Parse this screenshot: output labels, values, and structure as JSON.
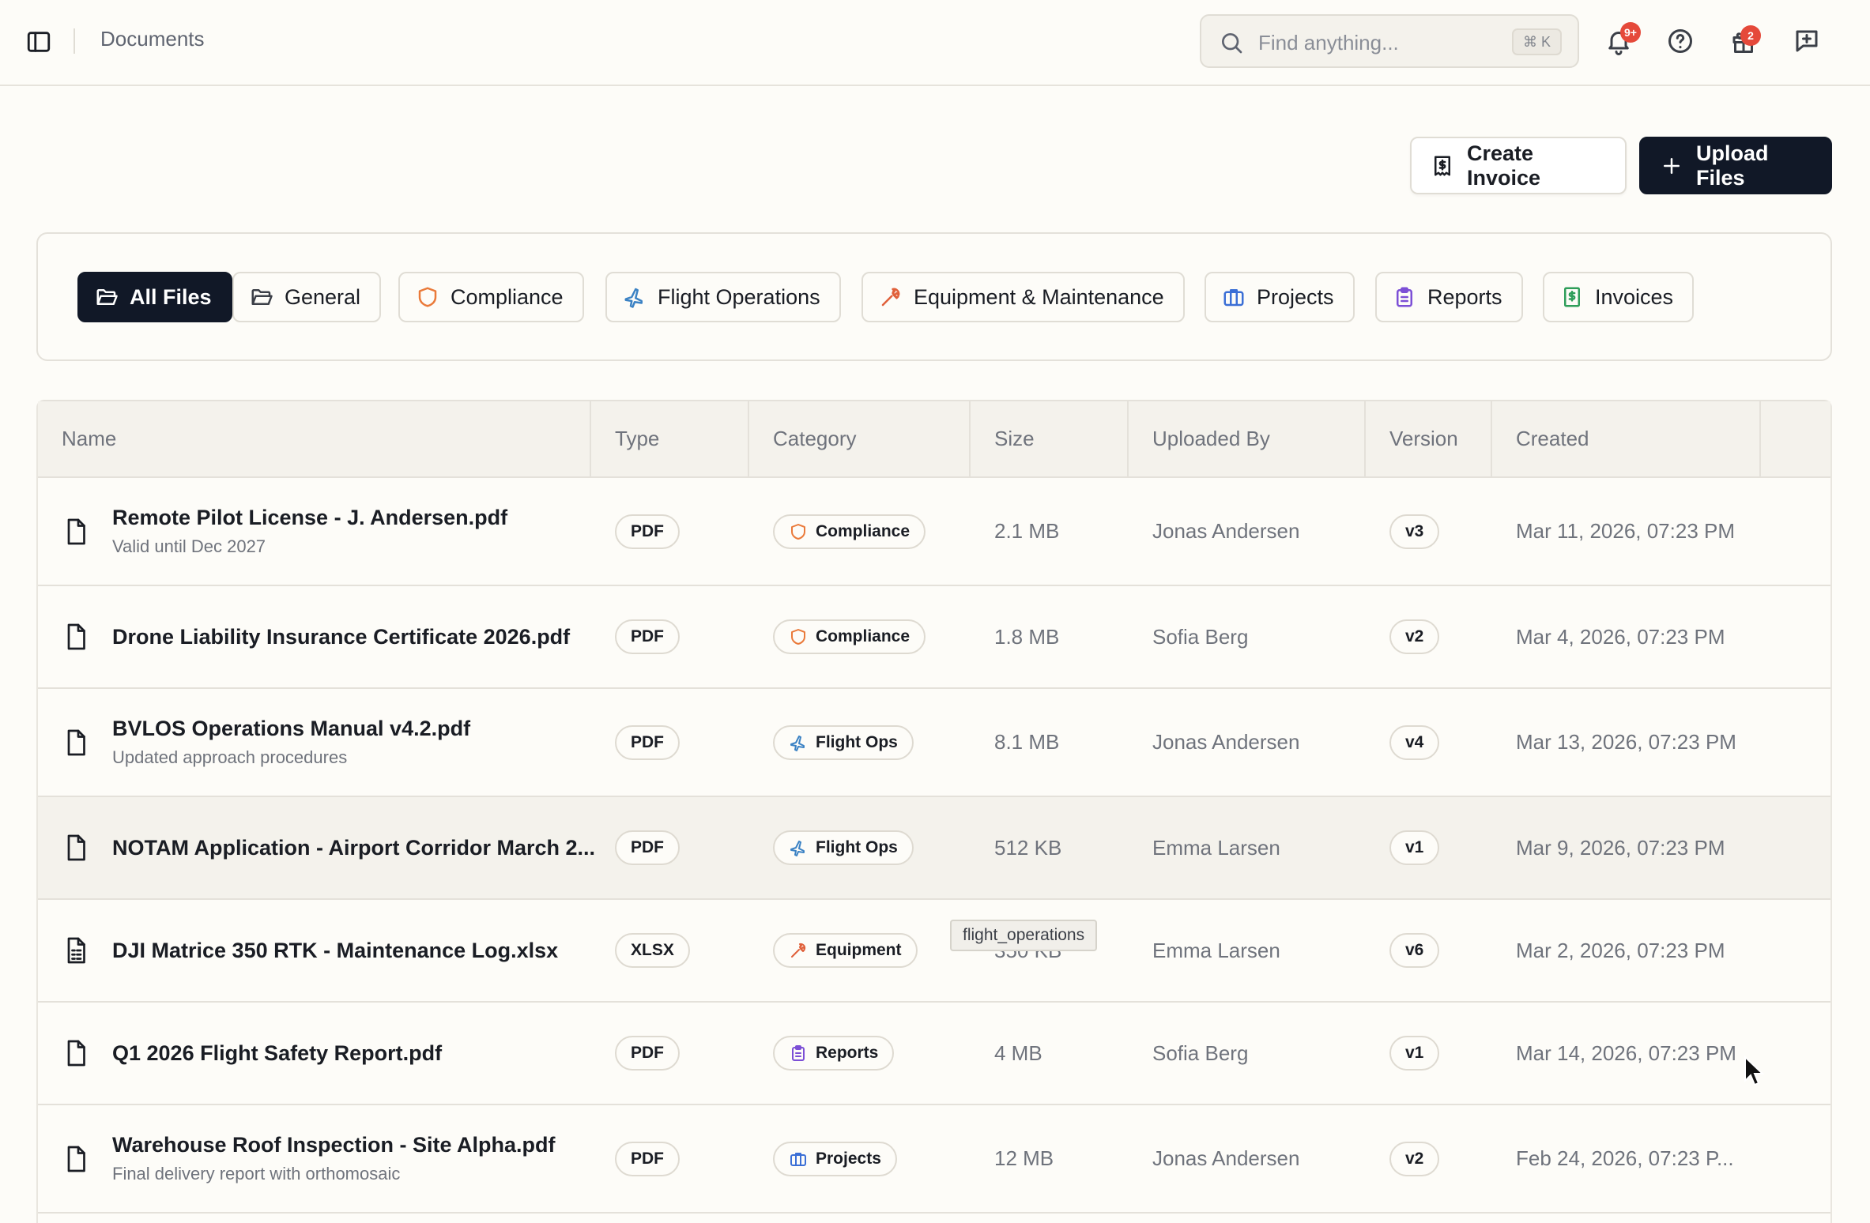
{
  "header": {
    "breadcrumb": "Documents",
    "search_placeholder": "Find anything...",
    "search_shortcut": "⌘ K",
    "notifications_badge": "9+",
    "gifts_badge": "2"
  },
  "actions": {
    "create_invoice": "Create Invoice",
    "upload_files": "Upload Files"
  },
  "tabs": [
    {
      "label": "All Files",
      "icon": "folder-open-icon",
      "active": true
    },
    {
      "label": "General",
      "icon": "folder-icon",
      "active": false
    },
    {
      "label": "Compliance",
      "icon": "shield-icon",
      "active": false
    },
    {
      "label": "Flight Operations",
      "icon": "plane-icon",
      "active": false
    },
    {
      "label": "Equipment & Maintenance",
      "icon": "wrench-icon",
      "active": false
    },
    {
      "label": "Projects",
      "icon": "briefcase-icon",
      "active": false
    },
    {
      "label": "Reports",
      "icon": "clipboard-icon",
      "active": false
    },
    {
      "label": "Invoices",
      "icon": "receipt-icon",
      "active": false
    }
  ],
  "table": {
    "columns": [
      "Name",
      "Type",
      "Category",
      "Size",
      "Uploaded By",
      "Version",
      "Created"
    ],
    "rows": [
      {
        "name": "Remote Pilot License - J. Andersen.pdf",
        "desc": "Valid until Dec 2027",
        "type": "PDF",
        "category": "Compliance",
        "category_icon": "shield-icon",
        "size": "2.1 MB",
        "uploaded_by": "Jonas Andersen",
        "version": "v3",
        "created": "Mar 11, 2026, 07:23 PM"
      },
      {
        "name": "Drone Liability Insurance Certificate 2026.pdf",
        "desc": "",
        "type": "PDF",
        "category": "Compliance",
        "category_icon": "shield-icon",
        "size": "1.8 MB",
        "uploaded_by": "Sofia Berg",
        "version": "v2",
        "created": "Mar 4, 2026, 07:23 PM"
      },
      {
        "name": "BVLOS Operations Manual v4.2.pdf",
        "desc": "Updated approach procedures",
        "type": "PDF",
        "category": "Flight Ops",
        "category_icon": "plane-icon",
        "size": "8.1 MB",
        "uploaded_by": "Jonas Andersen",
        "version": "v4",
        "created": "Mar 13, 2026, 07:23 PM"
      },
      {
        "name": "NOTAM Application - Airport Corridor March 2...",
        "desc": "",
        "type": "PDF",
        "category": "Flight Ops",
        "category_icon": "plane-icon",
        "size": "512 KB",
        "uploaded_by": "Emma Larsen",
        "version": "v1",
        "created": "Mar 9, 2026, 07:23 PM"
      },
      {
        "name": "DJI Matrice 350 RTK - Maintenance Log.xlsx",
        "desc": "",
        "type": "XLSX",
        "category": "Equipment",
        "category_icon": "wrench-icon",
        "size": "350 KB",
        "uploaded_by": "Emma Larsen",
        "version": "v6",
        "created": "Mar 2, 2026, 07:23 PM"
      },
      {
        "name": "Q1 2026 Flight Safety Report.pdf",
        "desc": "",
        "type": "PDF",
        "category": "Reports",
        "category_icon": "clipboard-icon",
        "size": "4 MB",
        "uploaded_by": "Sofia Berg",
        "version": "v1",
        "created": "Mar 14, 2026, 07:23 PM"
      },
      {
        "name": "Warehouse Roof Inspection - Site Alpha.pdf",
        "desc": "Final delivery report with orthomosaic",
        "type": "PDF",
        "category": "Projects",
        "category_icon": "briefcase-icon",
        "size": "12 MB",
        "uploaded_by": "Jonas Andersen",
        "version": "v2",
        "created": "Feb 24, 2026, 07:23 P..."
      }
    ]
  },
  "tooltip": "flight_operations",
  "colors": {
    "primary": "#111827",
    "background": "#fdfcf8",
    "header_bg": "#f4f2ec",
    "compliance": "#ea7a3a",
    "flight_ops": "#3b82c4",
    "equipment": "#e0603a",
    "projects": "#3b6fd6",
    "reports": "#7c4fd6",
    "invoices": "#2f9e5a",
    "badge": "#e5493a"
  }
}
